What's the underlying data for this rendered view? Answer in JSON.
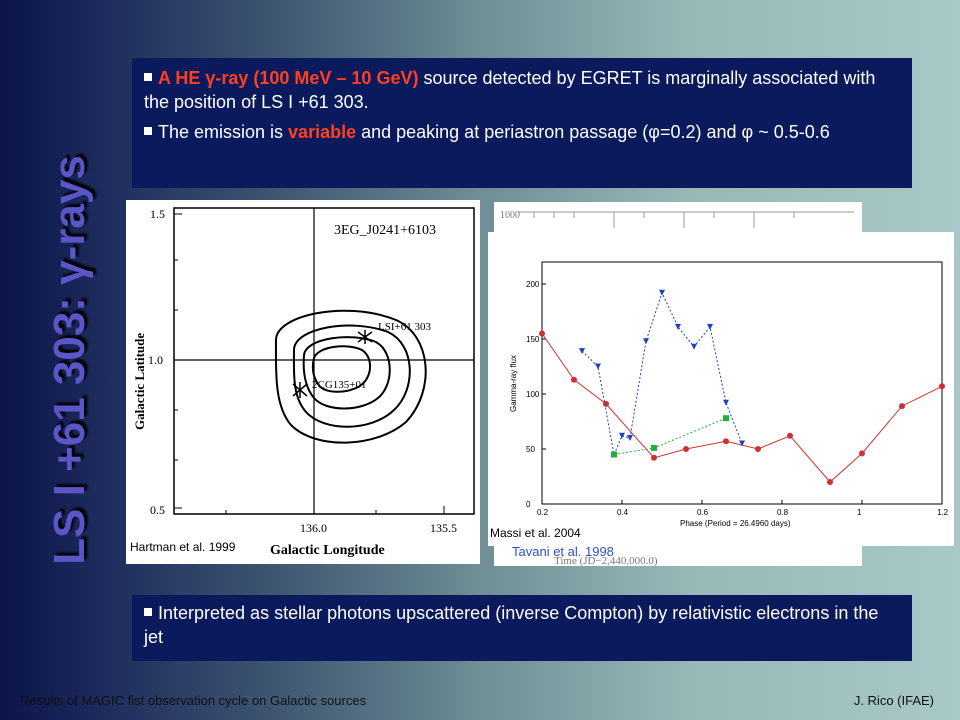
{
  "sidebar": {
    "title": "LS I +61 303: γ-rays"
  },
  "top_box": {
    "bullet1_hl": "A HE γ-ray (100 MeV – 10 GeV)",
    "bullet1_rest": " source detected by EGRET is marginally associated with the position of LS I +61 303.",
    "bullet2_pre": "The emission is ",
    "bullet2_hl": "variable",
    "bullet2_post": " and peaking at periastron passage (φ=0.2) and φ ~ 0.5-0.6"
  },
  "contour_plot": {
    "source_label": "3EG_J0241+6103",
    "star_label": "LSI+61 303",
    "egret_label": "2CG135+01",
    "ylabel": "Galactic Latitude",
    "xlabel": "Galactic Longitude",
    "yticks": [
      "1.5",
      "1.0",
      "0.5"
    ],
    "xticks": [
      "136.0",
      "135.5"
    ],
    "citation": "Hartman et al. 1999"
  },
  "light_curve_back": {
    "citation": "Tavani et al. 1998",
    "xlabel": "Time (JD−2,440,000.0)",
    "ytick": "1000"
  },
  "phase_plot": {
    "ylabel": "Gamma-ray flux",
    "xlabel": "Phase (Period = 26.4960 days)",
    "citation": "Massi et al. 2004",
    "xticks": [
      "0.2",
      "0.4",
      "0.6",
      "0.8",
      "1",
      "1.2"
    ],
    "yticks": [
      "0",
      "50",
      "100",
      "150",
      "200"
    ]
  },
  "chart_data": {
    "type": "scatter",
    "xlabel": "Phase (Period = 26.4960 days)",
    "ylabel": "Gamma-ray flux",
    "xlim": [
      0.2,
      1.2
    ],
    "ylim": [
      0,
      220
    ],
    "series": [
      {
        "color": "#d03030",
        "style": "solid",
        "x": [
          0.2,
          0.28,
          0.36,
          0.48,
          0.56,
          0.66,
          0.74,
          0.82,
          0.92,
          1.0,
          1.1,
          1.2
        ],
        "y": [
          155,
          113,
          91,
          42,
          50,
          57,
          50,
          62,
          20,
          46,
          89,
          107
        ]
      },
      {
        "color": "#2040c0",
        "style": "dotted",
        "x": [
          0.3,
          0.34,
          0.38,
          0.4,
          0.42,
          0.46,
          0.5,
          0.54,
          0.58,
          0.62,
          0.66,
          0.7
        ],
        "y": [
          139,
          125,
          45,
          62,
          60,
          148,
          192,
          161,
          143,
          161,
          92,
          55
        ]
      },
      {
        "color": "#20b040",
        "style": "dotted",
        "x": [
          0.38,
          0.48,
          0.66
        ],
        "y": [
          45,
          51,
          78
        ]
      }
    ]
  },
  "bottom_box": {
    "text": "Interpreted as stellar photons upscattered (inverse Compton) by relativistic electrons in the jet"
  },
  "footer": {
    "left": "Results of MAGIC fist observation cycle on Galactic sources",
    "right": "J. Rico (IFAE)"
  }
}
